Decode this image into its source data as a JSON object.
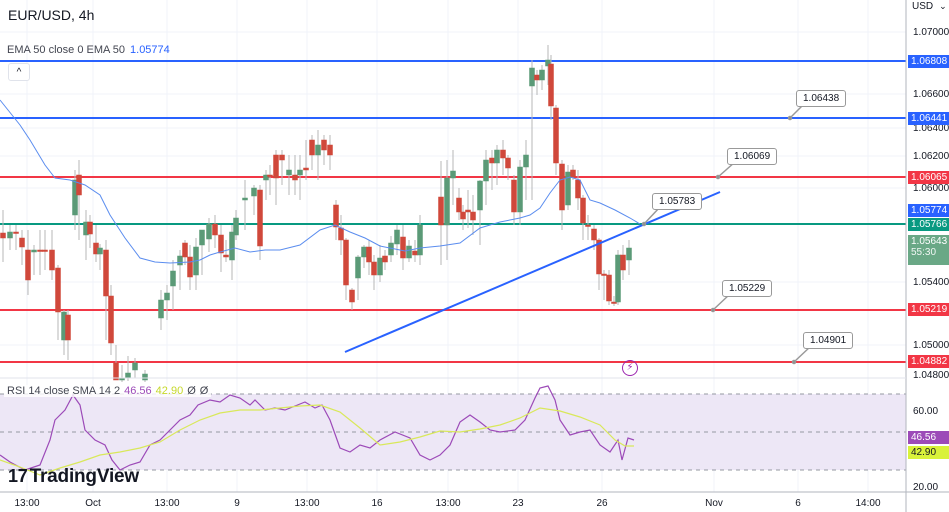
{
  "header": {
    "title": "EUR/USD, 4h",
    "currency": "USD",
    "currency_chevron": "⌄"
  },
  "ema_legend": {
    "label": "EMA 50 close 0 EMA 50",
    "value": "1.05774"
  },
  "collapse_button": "^",
  "rsi_legend": {
    "label": "RSI 14 close SMA 14 2",
    "rsi_value": "46.56",
    "sma_value": "42.90",
    "extra1": "Ø",
    "extra2": "Ø"
  },
  "logo": {
    "mark": "17",
    "text": "TradingView"
  },
  "colors": {
    "up": "#5b9a77",
    "down": "#d0483b",
    "ema": "#5b8def",
    "blue_line": "#2962ff",
    "red_line": "#f23645",
    "green_line": "#089981",
    "rsi": "#9c4ab8",
    "rsi_sma": "#d9e85a",
    "rsi_band": "#ede7f6"
  },
  "price_axis": {
    "ticks": [
      "1.07000",
      "1.06600",
      "1.06400",
      "1.06200",
      "1.06000",
      "1.05400",
      "1.05000",
      "1.04800"
    ],
    "tags": [
      {
        "value": "1.06808",
        "color": "#2962ff"
      },
      {
        "value": "1.06441",
        "color": "#2962ff"
      },
      {
        "value": "1.06065",
        "color": "#f23645"
      },
      {
        "value": "1.05774",
        "color": "#2962ff"
      },
      {
        "value": "1.05766",
        "color": "#089981"
      },
      {
        "value": "1.05643",
        "sub": "55:30",
        "color": "#5b9a77"
      },
      {
        "value": "1.05219",
        "color": "#f23645"
      },
      {
        "value": "1.04882",
        "color": "#f23645"
      }
    ]
  },
  "rsi_axis": {
    "ticks": [
      "60.00",
      "20.00"
    ],
    "tags": [
      {
        "value": "46.56",
        "color": "#9c4ab8"
      },
      {
        "value": "42.90",
        "color": "#d9f23a"
      }
    ]
  },
  "callouts": [
    "1.06438",
    "1.06069",
    "1.05783",
    "1.05229",
    "1.04901"
  ],
  "time_axis": [
    "13:00",
    "Oct",
    "13:00",
    "9",
    "13:00",
    "16",
    "13:00",
    "23",
    "26",
    "Nov",
    "6",
    "14:00"
  ],
  "chart_data": {
    "type": "candlestick",
    "title": "EUR/USD, 4h",
    "ylabel": "USD",
    "ylim": [
      1.0475,
      1.0712
    ],
    "x_ticks": [
      "13:00",
      "Oct",
      "13:00",
      "9",
      "13:00",
      "16",
      "13:00",
      "23",
      "26",
      "Nov",
      "6",
      "14:00"
    ],
    "horizontal_levels": [
      {
        "price": 1.06808,
        "color": "blue",
        "label": "1.06808"
      },
      {
        "price": 1.06441,
        "color": "blue",
        "label": "1.06438"
      },
      {
        "price": 1.06065,
        "color": "red",
        "label": "1.06069"
      },
      {
        "price": 1.05766,
        "color": "green",
        "label": "1.05766"
      },
      {
        "price": 1.05219,
        "color": "red",
        "label": "1.05229"
      },
      {
        "price": 1.04882,
        "color": "red",
        "label": "1.04901"
      }
    ],
    "trendline": {
      "from": [
        345,
        1.0496
      ],
      "to": [
        720,
        1.0592
      ],
      "label": "1.05783"
    },
    "last_price": 1.05643,
    "countdown": "55:30",
    "indicators": {
      "ema50": 1.05774,
      "rsi14": 46.56,
      "rsi_sma14": 42.9,
      "rsi_ylim": [
        20,
        80
      ],
      "rsi_ticks": [
        20,
        60
      ]
    }
  }
}
